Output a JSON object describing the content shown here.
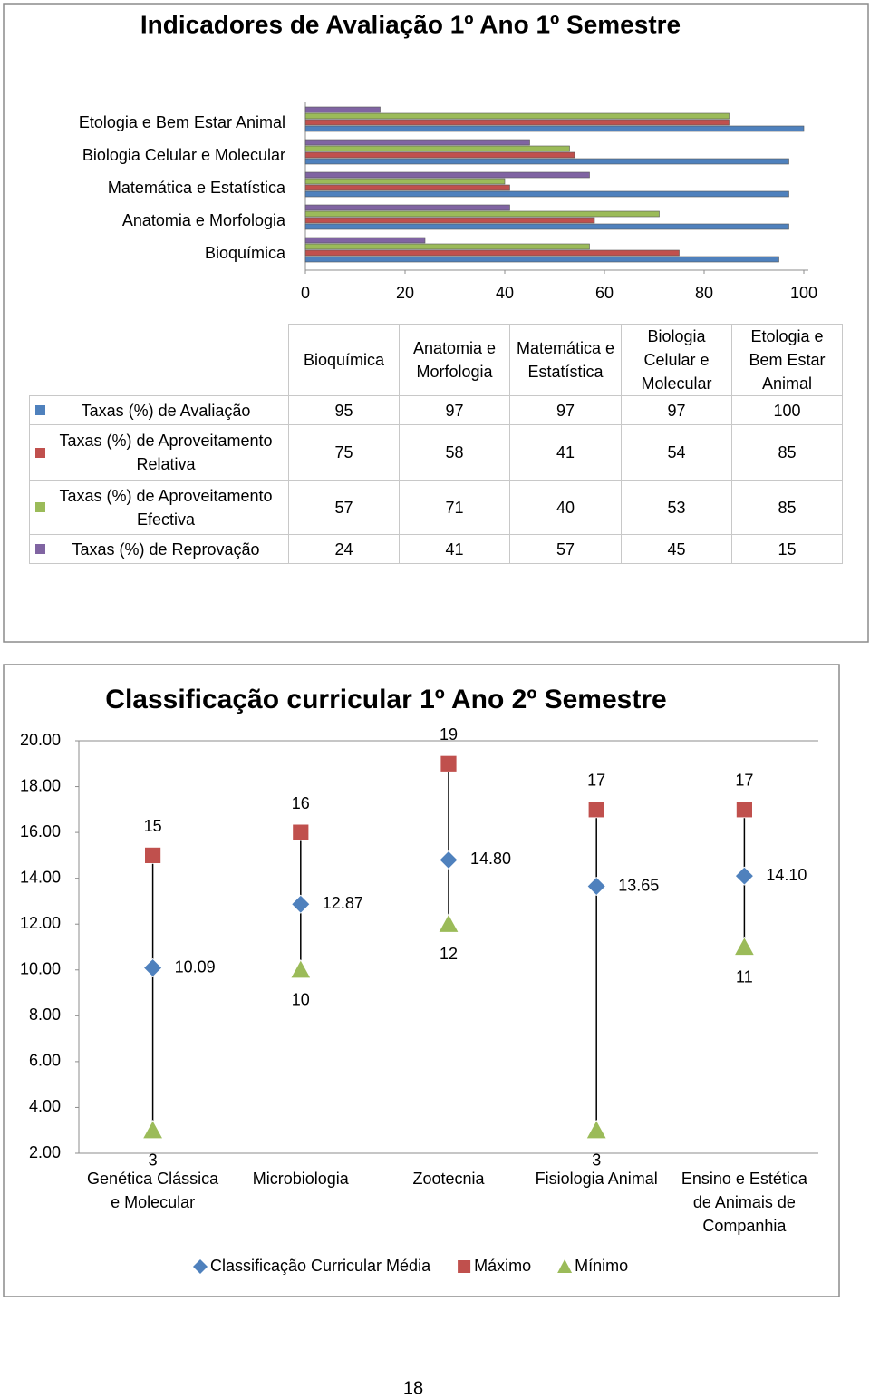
{
  "chart_data": [
    {
      "type": "bar",
      "orientation": "horizontal",
      "title": "Indicadores de Avaliação 1º Ano 1º Semestre",
      "categories": [
        "Bioquímica",
        "Anatomia e Morfologia",
        "Matemática e Estatística",
        "Biologia Celular e Molecular",
        "Etologia e Bem Estar Animal"
      ],
      "series": [
        {
          "name": "Taxas (%) de Reprovação",
          "color": "#8064a2",
          "values": [
            24,
            41,
            57,
            45,
            15
          ]
        },
        {
          "name": "Taxas (%) de Aproveitamento Efectiva",
          "color": "#9bbb59",
          "values": [
            57,
            71,
            40,
            53,
            85
          ]
        },
        {
          "name": "Taxas (%) de Aproveitamento Relativa",
          "color": "#c0504d",
          "values": [
            75,
            58,
            41,
            54,
            85
          ]
        },
        {
          "name": "Taxas (%) de Avaliação",
          "color": "#4f81bd",
          "values": [
            95,
            97,
            97,
            97,
            100
          ]
        }
      ],
      "xlim": [
        0,
        100
      ],
      "xticks": [
        0,
        20,
        40,
        60,
        80,
        100
      ],
      "grid": false,
      "data_table": true
    },
    {
      "type": "hilo",
      "title": "Classificação curricular 1º Ano 2º Semestre",
      "categories": [
        "Genética Clássica e Molecular",
        "Microbiologia",
        "Zootecnia",
        "Fisiologia Animal",
        "Ensino e Estética de Animais de Companhia"
      ],
      "series": [
        {
          "name": "Classificação Curricular Média",
          "color": "#4f81bd",
          "marker": "diamond",
          "label_position": "right",
          "values": [
            10.09,
            12.87,
            14.8,
            13.65,
            14.1
          ],
          "value_labels": [
            "10.09",
            "12.87",
            "14.80",
            "13.65",
            "14.10"
          ]
        },
        {
          "name": "Máximo",
          "color": "#c0504d",
          "marker": "square",
          "label_position": "above",
          "values": [
            15,
            16,
            19,
            17,
            17
          ]
        },
        {
          "name": "Mínimo",
          "color": "#9bbb59",
          "marker": "triangle",
          "label_position": "below",
          "values": [
            3,
            10,
            12,
            3,
            11
          ]
        }
      ],
      "ylim": [
        2,
        20
      ],
      "yticks": [
        {
          "value": 2,
          "label": "2.00"
        },
        {
          "value": 4,
          "label": "4.00"
        },
        {
          "value": 6,
          "label": "6.00"
        },
        {
          "value": 8,
          "label": "8.00"
        },
        {
          "value": 10,
          "label": "10.00"
        },
        {
          "value": 12,
          "label": "12.00"
        },
        {
          "value": 14,
          "label": "14.00"
        },
        {
          "value": 16,
          "label": "16.00"
        },
        {
          "value": 18,
          "label": "18.00"
        },
        {
          "value": 20,
          "label": "20.00"
        }
      ],
      "grid": false,
      "hi_lo_lines": true,
      "legend": "bottom"
    }
  ],
  "page_number": "18"
}
